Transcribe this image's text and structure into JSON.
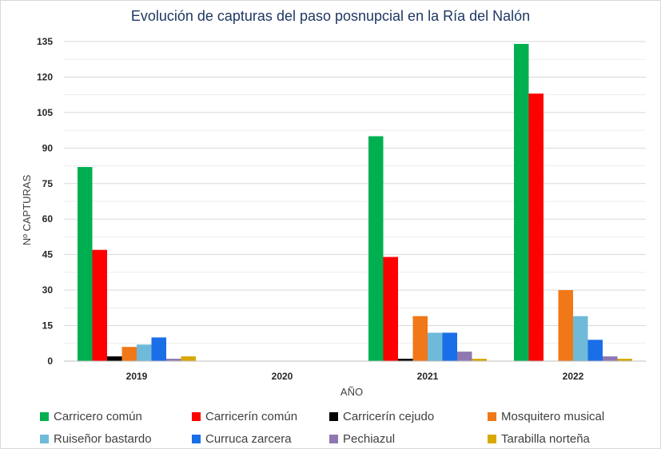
{
  "chart_data": {
    "type": "bar",
    "title": "Evolución de capturas del paso posnupcial en la Ría del Nalón",
    "xlabel": "AÑO",
    "ylabel": "Nº CAPTURAS",
    "ylim": [
      0,
      135
    ],
    "yticks": [
      0,
      15,
      30,
      45,
      60,
      75,
      90,
      105,
      120,
      135
    ],
    "grid": true,
    "legend_position": "bottom",
    "categories": [
      "2019",
      "2020",
      "2021",
      "2022"
    ],
    "series": [
      {
        "name": "Carricero común",
        "color": "#00b050",
        "values": [
          82,
          0,
          95,
          134
        ]
      },
      {
        "name": "Carricerín común",
        "color": "#ff0000",
        "values": [
          47,
          0,
          44,
          113
        ]
      },
      {
        "name": "Carricerín cejudo",
        "color": "#000000",
        "values": [
          2,
          0,
          1,
          0
        ]
      },
      {
        "name": "Mosquitero musical",
        "color": "#f07818",
        "values": [
          6,
          0,
          19,
          30
        ]
      },
      {
        "name": "Ruiseñor bastardo",
        "color": "#6fbad8",
        "values": [
          7,
          0,
          12,
          19
        ]
      },
      {
        "name": "Curruca zarcera",
        "color": "#1a6ee8",
        "values": [
          10,
          0,
          12,
          9
        ]
      },
      {
        "name": "Pechiazul",
        "color": "#8f78b0",
        "values": [
          1,
          0,
          4,
          2
        ]
      },
      {
        "name": "Tarabilla norteña",
        "color": "#d8a800",
        "values": [
          2,
          0,
          1,
          1
        ]
      }
    ]
  }
}
